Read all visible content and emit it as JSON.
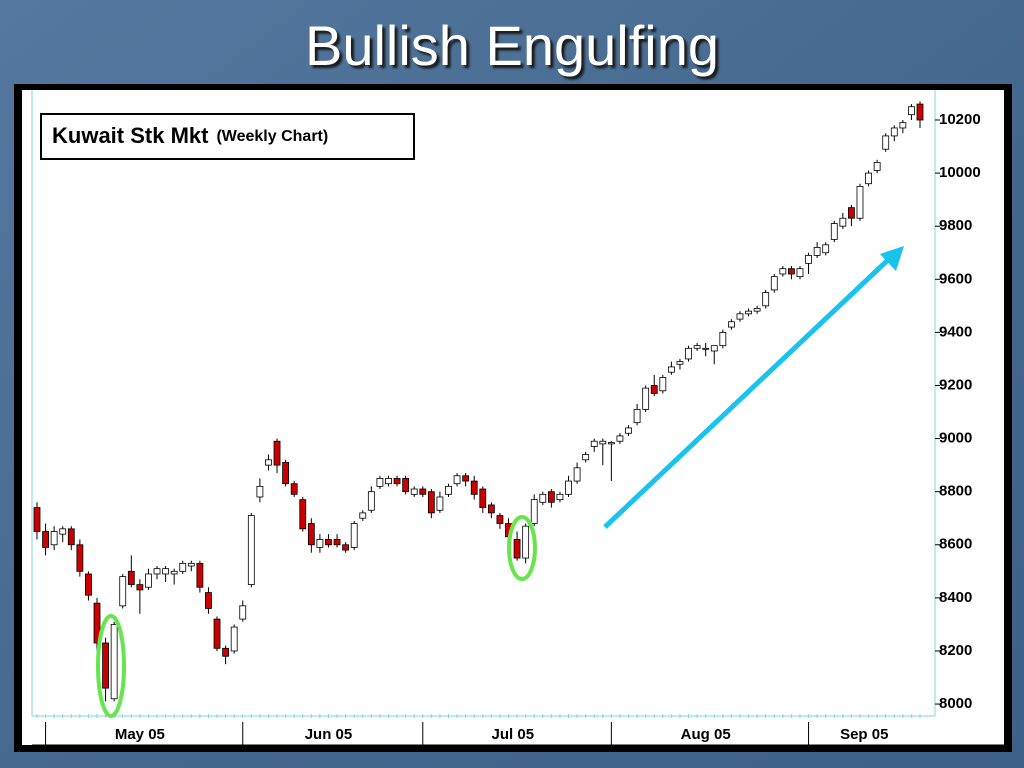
{
  "chart_data": {
    "type": "candlestick",
    "title": "Bullish Engulfing",
    "chart_label": "Kuwait Stk Mkt",
    "chart_label_note": "(Weekly Chart)",
    "categories": [
      null,
      "May 05",
      null,
      null,
      null,
      null,
      null,
      null,
      null,
      null,
      null,
      null,
      null,
      null,
      null,
      null,
      null,
      null,
      null,
      null,
      null,
      null,
      null,
      null,
      "Jun 05",
      null,
      null,
      null,
      null,
      null,
      null,
      null,
      null,
      null,
      null,
      null,
      null,
      null,
      null,
      null,
      null,
      null,
      null,
      null,
      null,
      "Jul 05",
      null,
      null,
      null,
      null,
      null,
      null,
      null,
      null,
      null,
      null,
      null,
      null,
      null,
      null,
      null,
      null,
      null,
      null,
      null,
      null,
      null,
      "Aug 05",
      null,
      null,
      null,
      null,
      null,
      null,
      null,
      null,
      null,
      null,
      null,
      null,
      null,
      null,
      null,
      null,
      null,
      null,
      null,
      null,
      null,
      null,
      "Sep 05",
      null,
      null,
      null,
      null,
      null,
      null,
      null,
      null,
      null,
      null,
      null,
      null,
      null
    ],
    "open": [
      8740,
      8650,
      8600,
      8640,
      8660,
      8600,
      8490,
      8380,
      8230,
      8020,
      8370,
      8500,
      8450,
      8440,
      8490,
      8490,
      8490,
      8500,
      8520,
      8530,
      8420,
      8320,
      8210,
      8200,
      8320,
      8450,
      8780,
      8900,
      8990,
      8910,
      8830,
      8770,
      8680,
      8590,
      8620,
      8620,
      8600,
      8590,
      8700,
      8730,
      8820,
      8830,
      8850,
      8850,
      8790,
      8810,
      8800,
      8730,
      8790,
      8830,
      8860,
      8840,
      8810,
      8750,
      8710,
      8680,
      8620,
      8550,
      8680,
      8760,
      8800,
      8770,
      8790,
      8840,
      8920,
      8970,
      8980,
      8980,
      8990,
      9020,
      9060,
      9110,
      9200,
      9180,
      9250,
      9280,
      9300,
      9340,
      9340,
      9330,
      9350,
      9420,
      9450,
      9470,
      9480,
      9500,
      9560,
      9620,
      9640,
      9610,
      9660,
      9690,
      9700,
      9750,
      9800,
      9870,
      9830,
      9960,
      10010,
      10090,
      10140,
      10170,
      10220,
      10260
    ],
    "high": [
      8760,
      8680,
      8670,
      8670,
      8670,
      8620,
      8500,
      8400,
      8250,
      8310,
      8490,
      8560,
      8470,
      8510,
      8520,
      8520,
      8510,
      8540,
      8540,
      8540,
      8440,
      8330,
      8220,
      8300,
      8390,
      8720,
      8850,
      8940,
      9000,
      8920,
      8840,
      8780,
      8700,
      8640,
      8640,
      8640,
      8610,
      8690,
      8730,
      8820,
      8860,
      8860,
      8860,
      8860,
      8820,
      8820,
      8810,
      8800,
      8830,
      8870,
      8870,
      8860,
      8820,
      8760,
      8720,
      8700,
      8650,
      8680,
      8790,
      8800,
      8810,
      8800,
      8860,
      8910,
      8950,
      9000,
      9000,
      8990,
      9020,
      9050,
      9130,
      9200,
      9240,
      9240,
      9290,
      9300,
      9350,
      9360,
      9360,
      9350,
      9410,
      9450,
      9480,
      9490,
      9500,
      9560,
      9620,
      9650,
      9650,
      9650,
      9700,
      9740,
      9740,
      9820,
      9850,
      9880,
      9960,
      10010,
      10050,
      10150,
      10180,
      10200,
      10260,
      10270
    ],
    "low": [
      8620,
      8560,
      8580,
      8610,
      8580,
      8480,
      8390,
      8190,
      8010,
      8010,
      8360,
      8440,
      8340,
      8430,
      8470,
      8460,
      8450,
      8490,
      8500,
      8420,
      8340,
      8200,
      8150,
      8190,
      8310,
      8440,
      8760,
      8880,
      8870,
      8820,
      8780,
      8650,
      8570,
      8570,
      8590,
      8590,
      8570,
      8580,
      8690,
      8720,
      8810,
      8820,
      8820,
      8790,
      8780,
      8780,
      8700,
      8720,
      8780,
      8820,
      8820,
      8770,
      8720,
      8700,
      8660,
      8620,
      8540,
      8530,
      8670,
      8750,
      8740,
      8760,
      8780,
      8830,
      8910,
      8950,
      8900,
      8840,
      8980,
      9010,
      9050,
      9100,
      9160,
      9170,
      9240,
      9260,
      9290,
      9330,
      9310,
      9280,
      9340,
      9410,
      9440,
      9460,
      9470,
      9490,
      9550,
      9610,
      9600,
      9600,
      9620,
      9680,
      9690,
      9740,
      9790,
      9800,
      9820,
      9950,
      10000,
      10080,
      10120,
      10150,
      10200,
      10170
    ],
    "close": [
      8650,
      8590,
      8650,
      8660,
      8600,
      8500,
      8410,
      8230,
      8060,
      8300,
      8480,
      8450,
      8430,
      8490,
      8510,
      8510,
      8500,
      8530,
      8530,
      8440,
      8360,
      8210,
      8180,
      8290,
      8370,
      8710,
      8820,
      8920,
      8900,
      8830,
      8790,
      8660,
      8600,
      8620,
      8600,
      8600,
      8580,
      8680,
      8720,
      8800,
      8850,
      8850,
      8830,
      8800,
      8810,
      8790,
      8720,
      8780,
      8820,
      8860,
      8840,
      8790,
      8740,
      8720,
      8680,
      8630,
      8550,
      8670,
      8770,
      8790,
      8760,
      8790,
      8840,
      8890,
      8940,
      8990,
      8990,
      8985,
      9010,
      9040,
      9110,
      9190,
      9170,
      9230,
      9270,
      9290,
      9340,
      9350,
      9340,
      9350,
      9400,
      9440,
      9470,
      9480,
      9490,
      9550,
      9610,
      9640,
      9620,
      9640,
      9690,
      9720,
      9730,
      9810,
      9830,
      9830,
      9950,
      10000,
      10040,
      10140,
      10170,
      10190,
      10250,
      10200
    ],
    "up_color": "#ffffff",
    "down_color": "#cc0000",
    "ylim": [
      7955,
      10313
    ],
    "yticks": [
      8000,
      8200,
      8400,
      8600,
      8800,
      9000,
      9200,
      9400,
      9600,
      9800,
      10000,
      10200
    ],
    "y_axis_side": "right"
  }
}
